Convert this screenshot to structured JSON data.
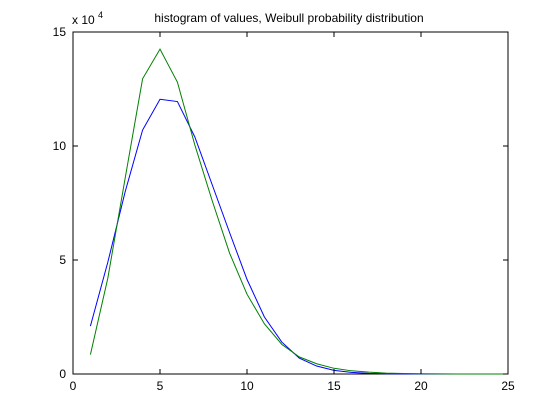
{
  "chart_data": {
    "type": "line",
    "title": "histogram of values, Weibull probability distribution",
    "xlabel": "",
    "ylabel": "",
    "xlim": [
      0,
      25
    ],
    "ylim": [
      0,
      150000
    ],
    "y_exponent_label": {
      "base": "x 10",
      "exp": "4"
    },
    "grid": false,
    "legend": "none",
    "x_ticks": [
      {
        "value": 0,
        "label": "0"
      },
      {
        "value": 5,
        "label": "5"
      },
      {
        "value": 10,
        "label": "10"
      },
      {
        "value": 15,
        "label": "15"
      },
      {
        "value": 20,
        "label": "20"
      },
      {
        "value": 25,
        "label": "25"
      }
    ],
    "y_ticks": [
      {
        "value": 0,
        "label": "0"
      },
      {
        "value": 50000,
        "label": "5"
      },
      {
        "value": 100000,
        "label": "10"
      },
      {
        "value": 150000,
        "label": "15"
      }
    ],
    "x": [
      1,
      2,
      3,
      4,
      5,
      6,
      7,
      8,
      9,
      10,
      11,
      12,
      13,
      14,
      15,
      16,
      17,
      18,
      19,
      20,
      21,
      22,
      23,
      24,
      25
    ],
    "series": [
      {
        "color": "#0000ff",
        "values": [
          21000,
          49000,
          80000,
          107000,
          120500,
          119500,
          104000,
          83000,
          62000,
          41500,
          25000,
          14000,
          7000,
          3500,
          1600,
          700,
          300,
          120,
          50,
          20,
          10,
          5,
          2,
          1,
          0
        ]
      },
      {
        "color": "#008000",
        "values": [
          8500,
          42000,
          86000,
          129500,
          142500,
          128000,
          100500,
          76000,
          53000,
          35000,
          22000,
          13000,
          7500,
          4500,
          2500,
          1400,
          800,
          400,
          200,
          100,
          50,
          25,
          12,
          6,
          3
        ]
      }
    ]
  }
}
